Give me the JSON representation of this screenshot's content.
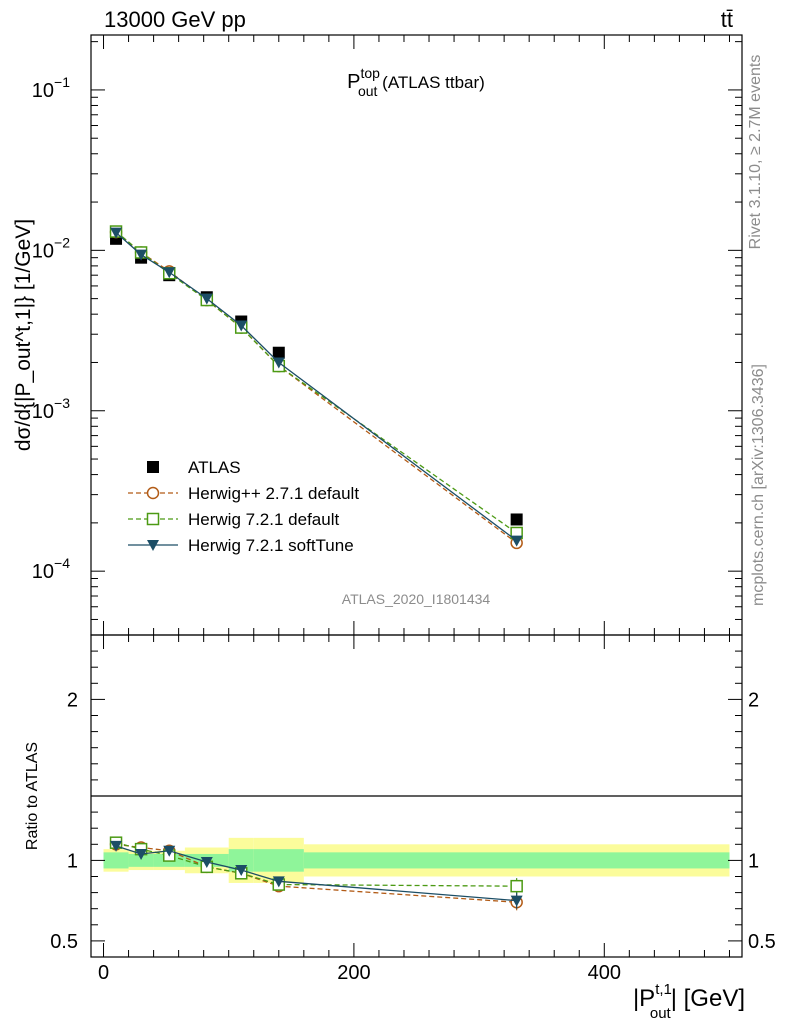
{
  "header": {
    "left": "13000 GeV pp",
    "right": "tt̄"
  },
  "side_labels": {
    "rivet": "Rivet 3.1.10, ≥ 2.7M events",
    "mcplots": "mcplots.cern.ch [arXiv:1306.3436]"
  },
  "chart_data": [
    {
      "type": "scatter",
      "title": "P_out^top (ATLAS ttbar)",
      "title_main": "P",
      "title_sup": "top",
      "title_sub": "out",
      "title_rest": " (ATLAS ttbar)",
      "watermark": "ATLAS_2020_I1801434",
      "yscale": "log",
      "ylim": [
        4e-05,
        0.22
      ],
      "xlim": [
        -10,
        510
      ],
      "ylabel": "dσ/d{|P_out^t,1|} [1/GeV]",
      "yticks": [
        {
          "value": 0.1,
          "mantissa": "10",
          "exp": "−1"
        },
        {
          "value": 0.01,
          "mantissa": "10",
          "exp": "−2"
        },
        {
          "value": 0.001,
          "mantissa": "10",
          "exp": "−3"
        },
        {
          "value": 0.0001,
          "mantissa": "10",
          "exp": "−4"
        }
      ],
      "legend_position": "bottom-left",
      "series": [
        {
          "name": "ATLAS",
          "color": "#000000",
          "marker": "filled-square",
          "line": "none",
          "x": [
            10,
            30,
            52.5,
            82.5,
            110,
            140,
            330
          ],
          "y": [
            0.0118,
            0.009,
            0.007,
            0.0051,
            0.0036,
            0.0023,
            0.00021
          ]
        },
        {
          "name": "Herwig++ 2.7.1 default",
          "color": "#b25b16",
          "marker": "open-circle",
          "line": "dashed",
          "x": [
            10,
            30,
            52.5,
            82.5,
            110,
            140,
            330
          ],
          "y": [
            0.013,
            0.0097,
            0.0074,
            0.0049,
            0.0033,
            0.0019,
            0.00015
          ]
        },
        {
          "name": "Herwig 7.2.1 default",
          "color": "#4c9a14",
          "marker": "open-square",
          "line": "dashed",
          "x": [
            10,
            30,
            52.5,
            82.5,
            110,
            140,
            330
          ],
          "y": [
            0.0131,
            0.0097,
            0.0072,
            0.0049,
            0.0033,
            0.0019,
            0.000173
          ]
        },
        {
          "name": "Herwig 7.2.1 softTune",
          "color": "#1c4e66",
          "marker": "filled-triangle-down",
          "line": "solid",
          "x": [
            10,
            30,
            52.5,
            82.5,
            110,
            140,
            330
          ],
          "y": [
            0.0129,
            0.0094,
            0.0073,
            0.005,
            0.0034,
            0.002,
            0.000155
          ]
        }
      ]
    },
    {
      "type": "scatter",
      "ylabel": "Ratio to ATLAS",
      "ylim": [
        0.4,
        2.4
      ],
      "xlim": [
        -10,
        510
      ],
      "xlabel": "|P_out^t,1| [GeV]",
      "xlabel_main": "|P",
      "xlabel_sup": "t,1",
      "xlabel_sub": "out",
      "xlabel_rest": "| [GeV]",
      "xticks": [
        0,
        200,
        400
      ],
      "yticks": [
        0.5,
        1,
        2
      ],
      "uncertainty_bands": {
        "edges": [
          0,
          20,
          40,
          65,
          100,
          120,
          160,
          500
        ],
        "inner": [
          0.05,
          0.04,
          0.04,
          0.04,
          0.07,
          0.07,
          0.05
        ],
        "outer": [
          0.07,
          0.06,
          0.06,
          0.08,
          0.14,
          0.14,
          0.1
        ],
        "inner_color": "#8ff59a",
        "outer_color": "#fbfc9b"
      },
      "series": [
        {
          "name": "Herwig++ 2.7.1 default",
          "color": "#b25b16",
          "marker": "open-circle",
          "line": "dashed",
          "x": [
            10,
            30,
            52.5,
            82.5,
            110,
            140,
            330
          ],
          "y": [
            1.1,
            1.08,
            1.06,
            0.96,
            0.92,
            0.84,
            0.74
          ],
          "err": [
            0.02,
            0.02,
            0.02,
            0.02,
            0.03,
            0.03,
            0.05
          ]
        },
        {
          "name": "Herwig 7.2.1 default",
          "color": "#4c9a14",
          "marker": "open-square",
          "line": "dashed",
          "x": [
            10,
            30,
            52.5,
            82.5,
            110,
            140,
            330
          ],
          "y": [
            1.11,
            1.07,
            1.03,
            0.96,
            0.92,
            0.85,
            0.84
          ],
          "err": [
            0.02,
            0.02,
            0.02,
            0.02,
            0.03,
            0.03,
            0.05
          ]
        },
        {
          "name": "Herwig 7.2.1 softTune",
          "color": "#1c4e66",
          "marker": "filled-triangle-down",
          "line": "solid",
          "x": [
            10,
            30,
            52.5,
            82.5,
            110,
            140,
            330
          ],
          "y": [
            1.09,
            1.04,
            1.06,
            0.99,
            0.94,
            0.87,
            0.75
          ],
          "err": [
            0.02,
            0.02,
            0.02,
            0.02,
            0.03,
            0.03,
            0.05
          ]
        }
      ]
    }
  ]
}
